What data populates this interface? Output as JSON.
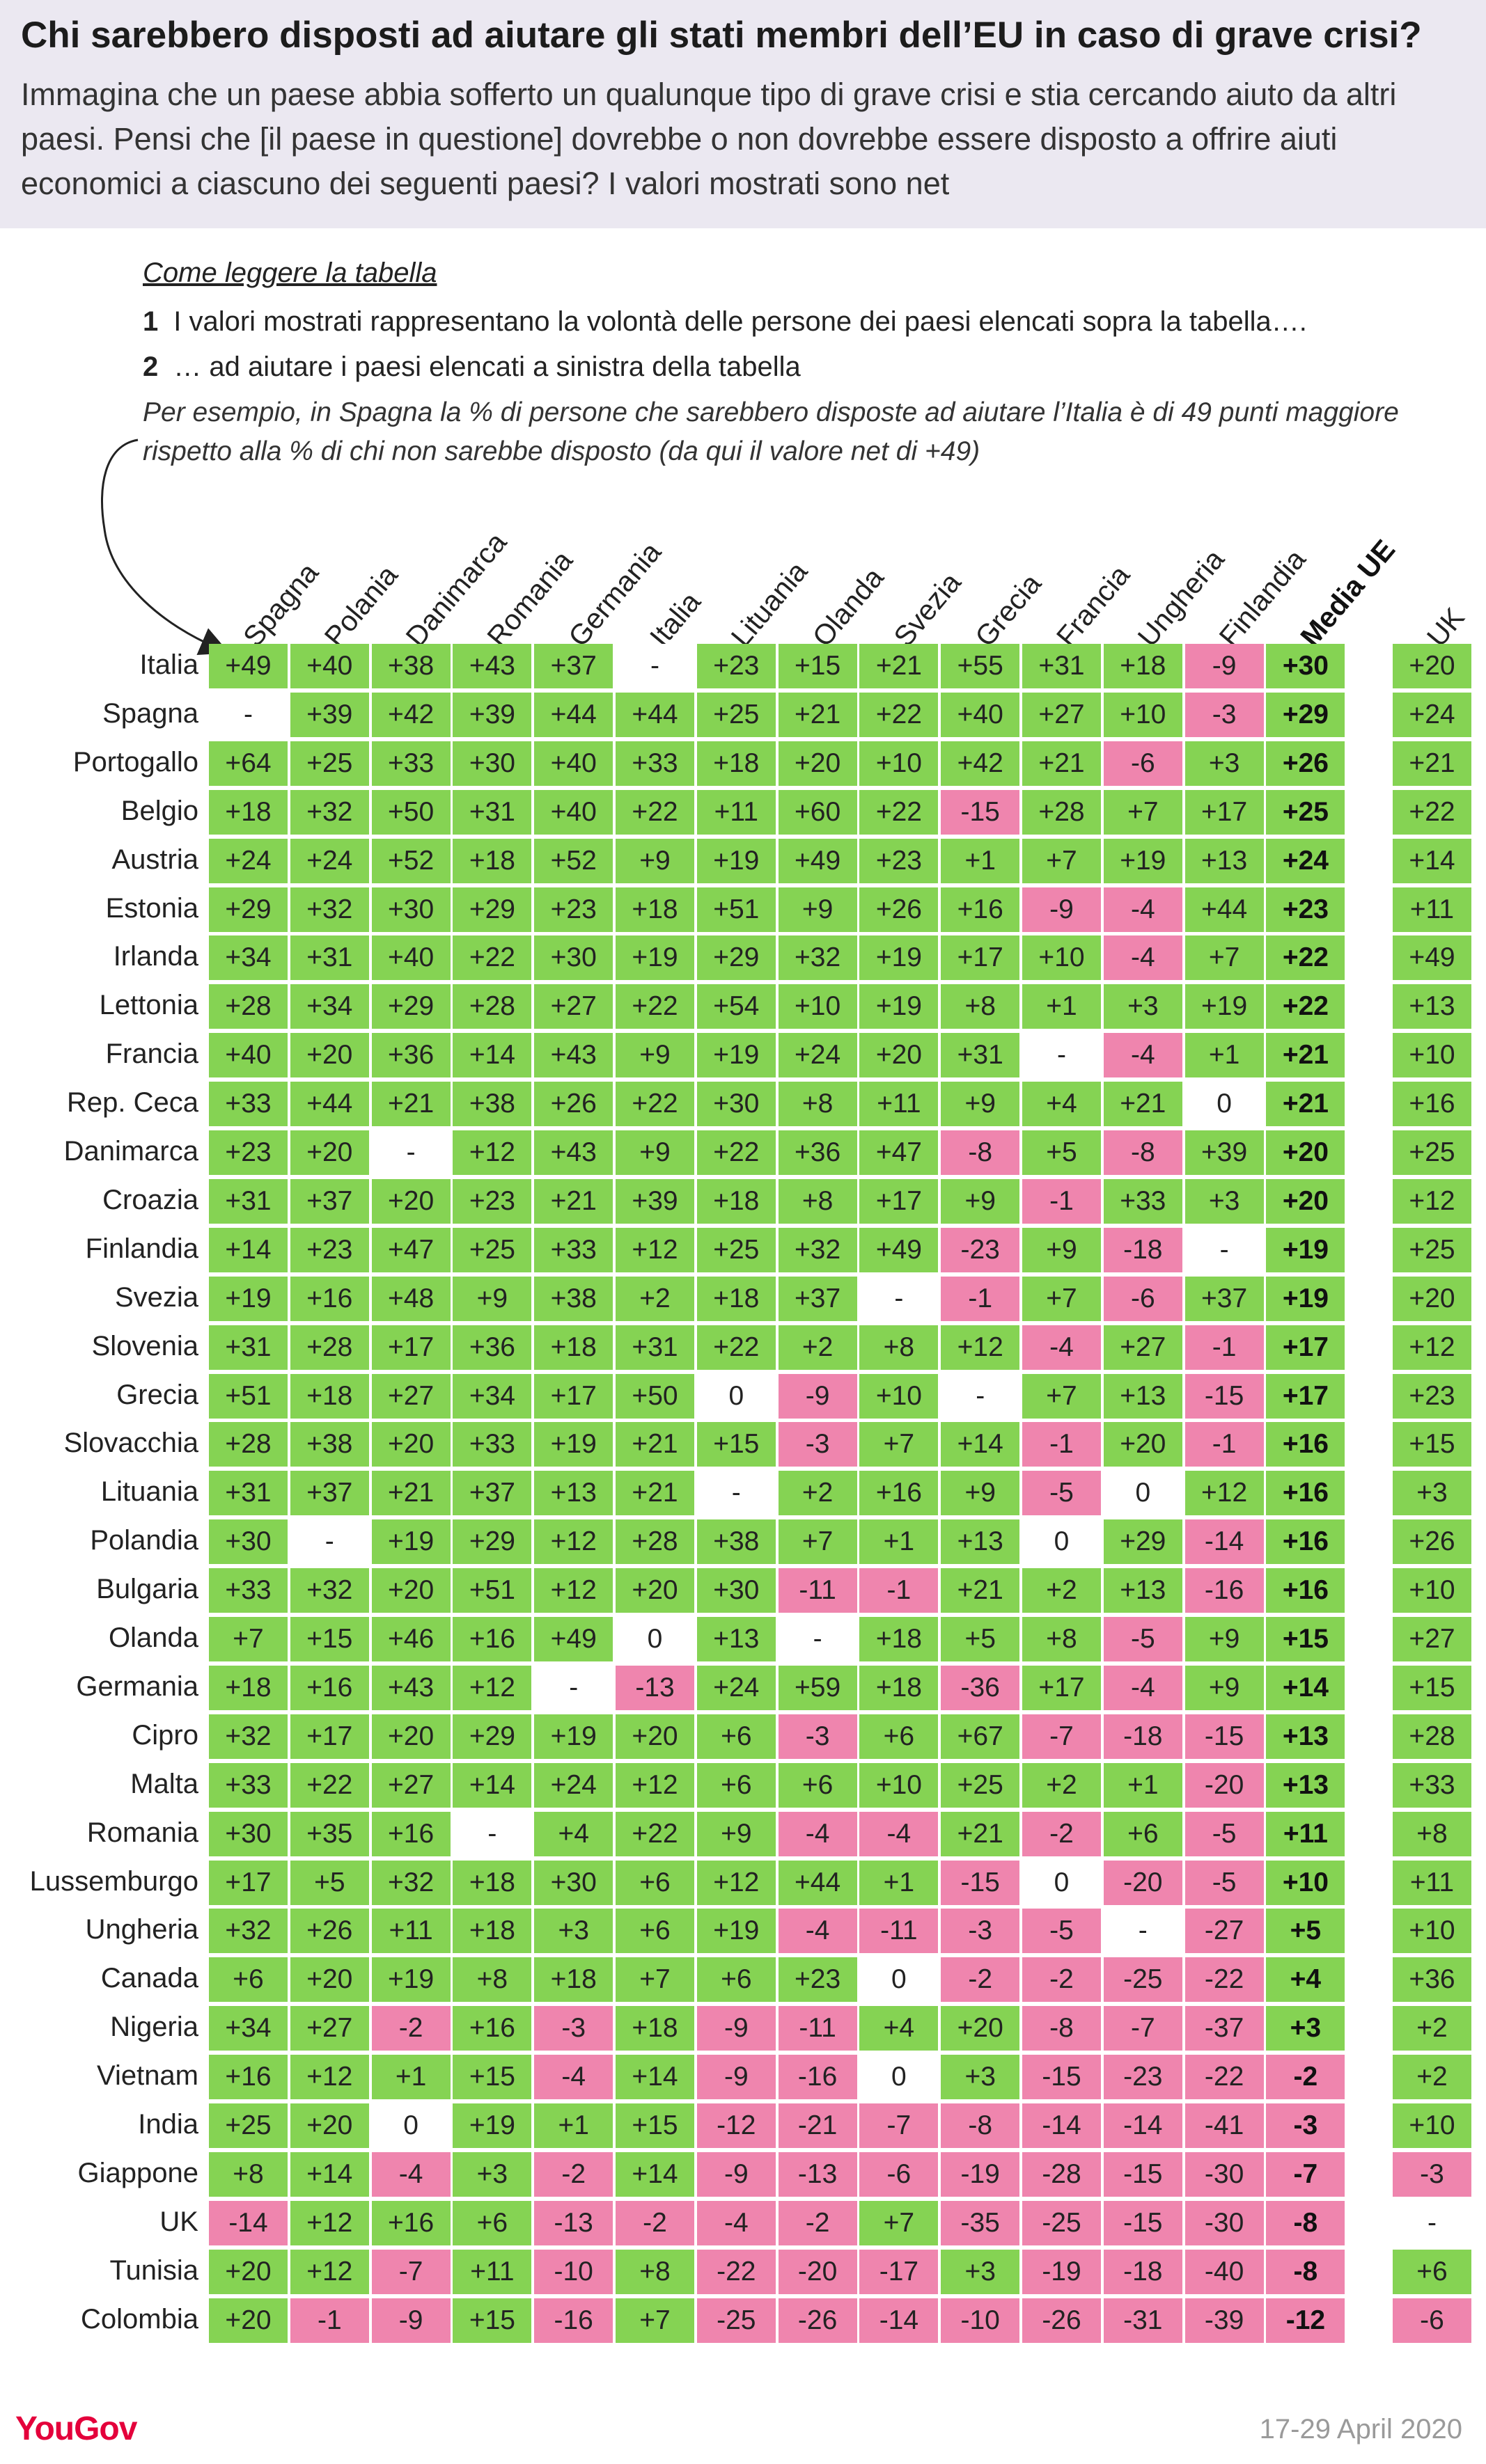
{
  "title": "Chi sarebbero disposti ad aiutare gli stati membri dell’EU in caso di grave crisi?",
  "subtitle": "Immagina che un paese abbia sofferto un qualunque tipo di grave crisi e stia cercando aiuto da altri paesi. Pensi che [il paese in questione] dovrebbe o non dovrebbe essere disposto a offrire aiuti economici a ciascuno dei seguenti paesi? I valori mostrati sono net",
  "howto": {
    "title": "Come leggere la tabella",
    "step1_num": "1",
    "step1": "I valori mostrati rappresentano la volontà delle persone dei paesi elencati sopra la tabella….",
    "step2_num": "2",
    "step2": "… ad aiutare i paesi elencati a sinistra della tabella",
    "example": "Per esempio, in Spagna la % di persone che sarebbero disposte ad aiutare l’Italia è di 49 punti maggiore rispetto alla % di chi non sarebbe disposto (da qui il valore net di +49)"
  },
  "colors": {
    "positive": "#85d353",
    "negative": "#ef85ae",
    "header_bg": "#ebe8f1",
    "brand": "#e4003b"
  },
  "chart_data": {
    "type": "table",
    "columns": [
      "Spagna",
      "Polania",
      "Danimarca",
      "Romania",
      "Germania",
      "Italia",
      "Lituania",
      "Olanda",
      "Svezia",
      "Grecia",
      "Francia",
      "Ungheria",
      "Finlandia",
      "Media UE",
      "UK"
    ],
    "rows": [
      {
        "label": "Italia",
        "values": [
          "+49",
          "+40",
          "+38",
          "+43",
          "+37",
          "-",
          "+23",
          "+15",
          "+21",
          "+55",
          "+31",
          "+18",
          "-9",
          "+30",
          "+20"
        ]
      },
      {
        "label": "Spagna",
        "values": [
          "-",
          "+39",
          "+42",
          "+39",
          "+44",
          "+44",
          "+25",
          "+21",
          "+22",
          "+40",
          "+27",
          "+10",
          "-3",
          "+29",
          "+24"
        ]
      },
      {
        "label": "Portogallo",
        "values": [
          "+64",
          "+25",
          "+33",
          "+30",
          "+40",
          "+33",
          "+18",
          "+20",
          "+10",
          "+42",
          "+21",
          "-6",
          "+3",
          "+26",
          "+21"
        ]
      },
      {
        "label": "Belgio",
        "values": [
          "+18",
          "+32",
          "+50",
          "+31",
          "+40",
          "+22",
          "+11",
          "+60",
          "+22",
          "-15",
          "+28",
          "+7",
          "+17",
          "+25",
          "+22"
        ]
      },
      {
        "label": "Austria",
        "values": [
          "+24",
          "+24",
          "+52",
          "+18",
          "+52",
          "+9",
          "+19",
          "+49",
          "+23",
          "+1",
          "+7",
          "+19",
          "+13",
          "+24",
          "+14"
        ]
      },
      {
        "label": "Estonia",
        "values": [
          "+29",
          "+32",
          "+30",
          "+29",
          "+23",
          "+18",
          "+51",
          "+9",
          "+26",
          "+16",
          "-9",
          "-4",
          "+44",
          "+23",
          "+11"
        ]
      },
      {
        "label": "Irlanda",
        "values": [
          "+34",
          "+31",
          "+40",
          "+22",
          "+30",
          "+19",
          "+29",
          "+32",
          "+19",
          "+17",
          "+10",
          "-4",
          "+7",
          "+22",
          "+49"
        ]
      },
      {
        "label": "Lettonia",
        "values": [
          "+28",
          "+34",
          "+29",
          "+28",
          "+27",
          "+22",
          "+54",
          "+10",
          "+19",
          "+8",
          "+1",
          "+3",
          "+19",
          "+22",
          "+13"
        ]
      },
      {
        "label": "Francia",
        "values": [
          "+40",
          "+20",
          "+36",
          "+14",
          "+43",
          "+9",
          "+19",
          "+24",
          "+20",
          "+31",
          "-",
          "-4",
          "+1",
          "+21",
          "+10"
        ]
      },
      {
        "label": "Rep. Ceca",
        "values": [
          "+33",
          "+44",
          "+21",
          "+38",
          "+26",
          "+22",
          "+30",
          "+8",
          "+11",
          "+9",
          "+4",
          "+21",
          "0",
          "+21",
          "+16"
        ]
      },
      {
        "label": "Danimarca",
        "values": [
          "+23",
          "+20",
          "-",
          "+12",
          "+43",
          "+9",
          "+22",
          "+36",
          "+47",
          "-8",
          "+5",
          "-8",
          "+39",
          "+20",
          "+25"
        ]
      },
      {
        "label": "Croazia",
        "values": [
          "+31",
          "+37",
          "+20",
          "+23",
          "+21",
          "+39",
          "+18",
          "+8",
          "+17",
          "+9",
          "-1",
          "+33",
          "+3",
          "+20",
          "+12"
        ]
      },
      {
        "label": "Finlandia",
        "values": [
          "+14",
          "+23",
          "+47",
          "+25",
          "+33",
          "+12",
          "+25",
          "+32",
          "+49",
          "-23",
          "+9",
          "-18",
          "-",
          "+19",
          "+25"
        ]
      },
      {
        "label": "Svezia",
        "values": [
          "+19",
          "+16",
          "+48",
          "+9",
          "+38",
          "+2",
          "+18",
          "+37",
          "-",
          "-1",
          "+7",
          "-6",
          "+37",
          "+19",
          "+20"
        ]
      },
      {
        "label": "Slovenia",
        "values": [
          "+31",
          "+28",
          "+17",
          "+36",
          "+18",
          "+31",
          "+22",
          "+2",
          "+8",
          "+12",
          "-4",
          "+27",
          "-1",
          "+17",
          "+12"
        ]
      },
      {
        "label": "Grecia",
        "values": [
          "+51",
          "+18",
          "+27",
          "+34",
          "+17",
          "+50",
          "0",
          "-9",
          "+10",
          "-",
          "+7",
          "+13",
          "-15",
          "+17",
          "+23"
        ]
      },
      {
        "label": "Slovacchia",
        "values": [
          "+28",
          "+38",
          "+20",
          "+33",
          "+19",
          "+21",
          "+15",
          "-3",
          "+7",
          "+14",
          "-1",
          "+20",
          "-1",
          "+16",
          "+15"
        ]
      },
      {
        "label": "Lituania",
        "values": [
          "+31",
          "+37",
          "+21",
          "+37",
          "+13",
          "+21",
          "-",
          "+2",
          "+16",
          "+9",
          "-5",
          "0",
          "+12",
          "+16",
          "+3"
        ]
      },
      {
        "label": "Polandia",
        "values": [
          "+30",
          "-",
          "+19",
          "+29",
          "+12",
          "+28",
          "+38",
          "+7",
          "+1",
          "+13",
          "0",
          "+29",
          "-14",
          "+16",
          "+26"
        ]
      },
      {
        "label": "Bulgaria",
        "values": [
          "+33",
          "+32",
          "+20",
          "+51",
          "+12",
          "+20",
          "+30",
          "-11",
          "-1",
          "+21",
          "+2",
          "+13",
          "-16",
          "+16",
          "+10"
        ]
      },
      {
        "label": "Olanda",
        "values": [
          "+7",
          "+15",
          "+46",
          "+16",
          "+49",
          "0",
          "+13",
          "-",
          "+18",
          "+5",
          "+8",
          "-5",
          "+9",
          "+15",
          "+27"
        ]
      },
      {
        "label": "Germania",
        "values": [
          "+18",
          "+16",
          "+43",
          "+12",
          "-",
          "-13",
          "+24",
          "+59",
          "+18",
          "-36",
          "+17",
          "-4",
          "+9",
          "+14",
          "+15"
        ]
      },
      {
        "label": "Cipro",
        "values": [
          "+32",
          "+17",
          "+20",
          "+29",
          "+19",
          "+20",
          "+6",
          "-3",
          "+6",
          "+67",
          "-7",
          "-18",
          "-15",
          "+13",
          "+28"
        ]
      },
      {
        "label": "Malta",
        "values": [
          "+33",
          "+22",
          "+27",
          "+14",
          "+24",
          "+12",
          "+6",
          "+6",
          "+10",
          "+25",
          "+2",
          "+1",
          "-20",
          "+13",
          "+33"
        ]
      },
      {
        "label": "Romania",
        "values": [
          "+30",
          "+35",
          "+16",
          "-",
          "+4",
          "+22",
          "+9",
          "-4",
          "-4",
          "+21",
          "-2",
          "+6",
          "-5",
          "+11",
          "+8"
        ]
      },
      {
        "label": "Lussemburgo",
        "values": [
          "+17",
          "+5",
          "+32",
          "+18",
          "+30",
          "+6",
          "+12",
          "+44",
          "+1",
          "-15",
          "0",
          "-20",
          "-5",
          "+10",
          "+11"
        ]
      },
      {
        "label": "Ungheria",
        "values": [
          "+32",
          "+26",
          "+11",
          "+18",
          "+3",
          "+6",
          "+19",
          "-4",
          "-11",
          "-3",
          "-5",
          "-",
          "-27",
          "+5",
          "+10"
        ]
      },
      {
        "label": "Canada",
        "values": [
          "+6",
          "+20",
          "+19",
          "+8",
          "+18",
          "+7",
          "+6",
          "+23",
          "0",
          "-2",
          "-2",
          "-25",
          "-22",
          "+4",
          "+36"
        ]
      },
      {
        "label": "Nigeria",
        "values": [
          "+34",
          "+27",
          "-2",
          "+16",
          "-3",
          "+18",
          "-9",
          "-11",
          "+4",
          "+20",
          "-8",
          "-7",
          "-37",
          "+3",
          "+2"
        ]
      },
      {
        "label": "Vietnam",
        "values": [
          "+16",
          "+12",
          "+1",
          "+15",
          "-4",
          "+14",
          "-9",
          "-16",
          "0",
          "+3",
          "-15",
          "-23",
          "-22",
          "-2",
          "+2"
        ]
      },
      {
        "label": "India",
        "values": [
          "+25",
          "+20",
          "0",
          "+19",
          "+1",
          "+15",
          "-12",
          "-21",
          "-7",
          "-8",
          "-14",
          "-14",
          "-41",
          "-3",
          "+10"
        ]
      },
      {
        "label": "Giappone",
        "values": [
          "+8",
          "+14",
          "-4",
          "+3",
          "-2",
          "+14",
          "-9",
          "-13",
          "-6",
          "-19",
          "-28",
          "-15",
          "-30",
          "-7",
          "-3"
        ]
      },
      {
        "label": "UK",
        "values": [
          "-14",
          "+12",
          "+16",
          "+6",
          "-13",
          "-2",
          "-4",
          "-2",
          "+7",
          "-35",
          "-25",
          "-15",
          "-30",
          "-8",
          "-"
        ]
      },
      {
        "label": "Tunisia",
        "values": [
          "+20",
          "+12",
          "-7",
          "+11",
          "-10",
          "+8",
          "-22",
          "-20",
          "-17",
          "+3",
          "-19",
          "-18",
          "-40",
          "-8",
          "+6"
        ]
      },
      {
        "label": "Colombia",
        "values": [
          "+20",
          "-1",
          "-9",
          "+15",
          "-16",
          "+7",
          "-25",
          "-26",
          "-14",
          "-10",
          "-26",
          "-31",
          "-39",
          "-12",
          "-6"
        ]
      }
    ]
  },
  "footer": {
    "brand": "YouGov",
    "date": "17-29 April 2020"
  }
}
